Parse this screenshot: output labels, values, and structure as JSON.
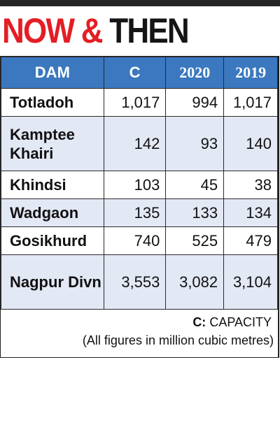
{
  "headline": {
    "part1": "NOW &",
    "part2": "THEN"
  },
  "table": {
    "headers": [
      "DAM",
      "C",
      "2020",
      "2019"
    ],
    "rows": [
      {
        "dam": "Totladoh",
        "c": "1,017",
        "y2020": "994",
        "y2019": "1,017"
      },
      {
        "dam": "Kamptee Khairi",
        "c": "142",
        "y2020": "93",
        "y2019": "140"
      },
      {
        "dam": "Khindsi",
        "c": "103",
        "y2020": "45",
        "y2019": "38"
      },
      {
        "dam": "Wadgaon",
        "c": "135",
        "y2020": "133",
        "y2019": "134"
      },
      {
        "dam": "Gosikhurd",
        "c": "740",
        "y2020": "525",
        "y2019": "479"
      },
      {
        "dam": "Nagpur Divn",
        "c": "3,553",
        "y2020": "3,082",
        "y2019": "3,104"
      }
    ]
  },
  "notes": {
    "capacity_key": "C:",
    "capacity_label": " CAPACITY",
    "units": "(All figures in million cubic metres)"
  },
  "colors": {
    "header_bg": "#3b78bf",
    "stripe_bg": "#e3e8f5",
    "headline_red": "#e31e24"
  }
}
